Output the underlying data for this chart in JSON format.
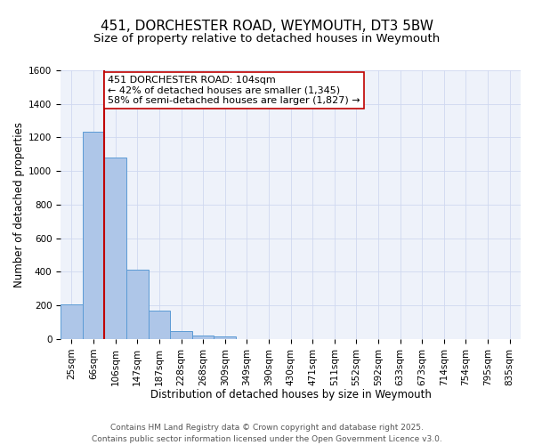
{
  "title": "451, DORCHESTER ROAD, WEYMOUTH, DT3 5BW",
  "subtitle": "Size of property relative to detached houses in Weymouth",
  "xlabel": "Distribution of detached houses by size in Weymouth",
  "ylabel": "Number of detached properties",
  "bar_labels": [
    "25sqm",
    "66sqm",
    "106sqm",
    "147sqm",
    "187sqm",
    "228sqm",
    "268sqm",
    "309sqm",
    "349sqm",
    "390sqm",
    "430sqm",
    "471sqm",
    "511sqm",
    "552sqm",
    "592sqm",
    "633sqm",
    "673sqm",
    "714sqm",
    "754sqm",
    "795sqm",
    "835sqm"
  ],
  "bar_values": [
    205,
    1235,
    1080,
    415,
    170,
    50,
    20,
    15,
    0,
    0,
    0,
    0,
    0,
    0,
    0,
    0,
    0,
    0,
    0,
    0,
    0
  ],
  "bar_color": "#aec6e8",
  "bar_edge_color": "#5b9bd5",
  "ylim": [
    0,
    1600
  ],
  "yticks": [
    0,
    200,
    400,
    600,
    800,
    1000,
    1200,
    1400,
    1600
  ],
  "property_line_x": 2,
  "property_line_color": "#c00000",
  "annotation_title": "451 DORCHESTER ROAD: 104sqm",
  "annotation_line1": "← 42% of detached houses are smaller (1,345)",
  "annotation_line2": "58% of semi-detached houses are larger (1,827) →",
  "annotation_box_color": "#ffffff",
  "annotation_box_edge": "#c00000",
  "footer1": "Contains HM Land Registry data © Crown copyright and database right 2025.",
  "footer2": "Contains public sector information licensed under the Open Government Licence v3.0.",
  "bg_color": "#eef2fa",
  "grid_color": "#d0d8f0",
  "title_fontsize": 11,
  "subtitle_fontsize": 9.5,
  "axis_label_fontsize": 8.5,
  "tick_fontsize": 7.5,
  "annotation_fontsize": 8,
  "footer_fontsize": 6.5
}
